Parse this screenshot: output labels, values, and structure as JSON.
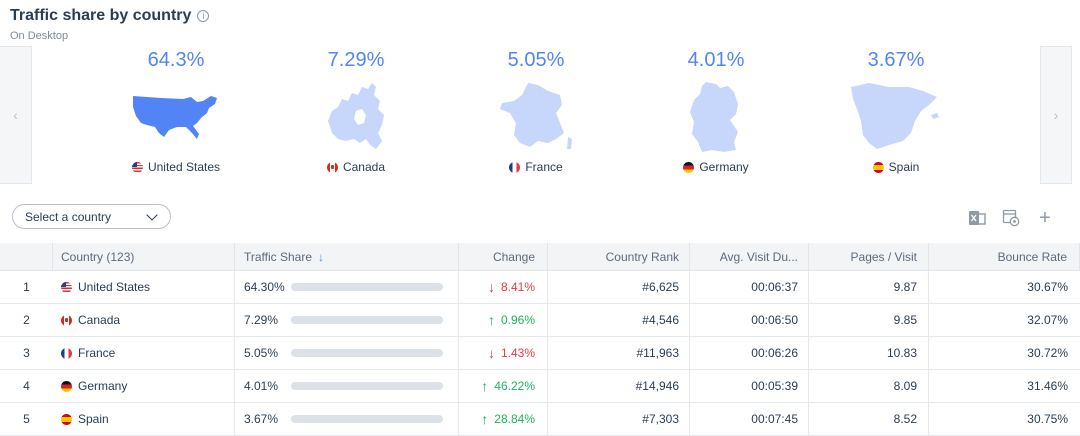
{
  "header": {
    "title": "Traffic share by country",
    "subtitle": "On Desktop"
  },
  "carousel": {
    "prev_label": "‹",
    "next_label": "›",
    "cards": [
      {
        "pct": "64.3%",
        "country": "United States",
        "flag": "us",
        "map_color": "#5284f5"
      },
      {
        "pct": "7.29%",
        "country": "Canada",
        "flag": "ca",
        "map_color": "#c7d6fb"
      },
      {
        "pct": "5.05%",
        "country": "France",
        "flag": "fr",
        "map_color": "#c7d6fb"
      },
      {
        "pct": "4.01%",
        "country": "Germany",
        "flag": "de",
        "map_color": "#c7d6fb"
      },
      {
        "pct": "3.67%",
        "country": "Spain",
        "flag": "es",
        "map_color": "#c7d6fb"
      }
    ]
  },
  "select": {
    "label": "Select a country"
  },
  "tools": {
    "add_label": "+"
  },
  "table": {
    "headers": {
      "country": "Country (123)",
      "traffic_share": "Traffic Share",
      "change": "Change",
      "country_rank": "Country Rank",
      "avg_visit": "Avg. Visit Du...",
      "pages_visit": "Pages / Visit",
      "bounce_rate": "Bounce Rate"
    },
    "rows": [
      {
        "rank": "1",
        "country": "United States",
        "flag": "us",
        "share": "64.30%",
        "share_fraction": 0.643,
        "change": "8.41%",
        "direction": "down",
        "country_rank": "#6,625",
        "avg_visit": "00:06:37",
        "pages_visit": "9.87",
        "bounce_rate": "30.67%"
      },
      {
        "rank": "2",
        "country": "Canada",
        "flag": "ca",
        "share": "7.29%",
        "share_fraction": 0.0729,
        "change": "0.96%",
        "direction": "up",
        "country_rank": "#4,546",
        "avg_visit": "00:06:50",
        "pages_visit": "9.85",
        "bounce_rate": "32.07%"
      },
      {
        "rank": "3",
        "country": "France",
        "flag": "fr",
        "share": "5.05%",
        "share_fraction": 0.0505,
        "change": "1.43%",
        "direction": "down",
        "country_rank": "#11,963",
        "avg_visit": "00:06:26",
        "pages_visit": "10.83",
        "bounce_rate": "30.72%"
      },
      {
        "rank": "4",
        "country": "Germany",
        "flag": "de",
        "share": "4.01%",
        "share_fraction": 0.0401,
        "change": "46.22%",
        "direction": "up",
        "country_rank": "#14,946",
        "avg_visit": "00:05:39",
        "pages_visit": "8.09",
        "bounce_rate": "31.46%"
      },
      {
        "rank": "5",
        "country": "Spain",
        "flag": "es",
        "share": "3.67%",
        "share_fraction": 0.0367,
        "change": "28.84%",
        "direction": "up",
        "country_rank": "#7,303",
        "avg_visit": "00:07:45",
        "pages_visit": "8.52",
        "bounce_rate": "30.75%"
      }
    ]
  },
  "colors": {
    "accent": "#5284f5",
    "bar_fill": "#4a72c9",
    "bar_track": "#dde1e8",
    "up": "#1fb25a",
    "down": "#e43b45"
  }
}
